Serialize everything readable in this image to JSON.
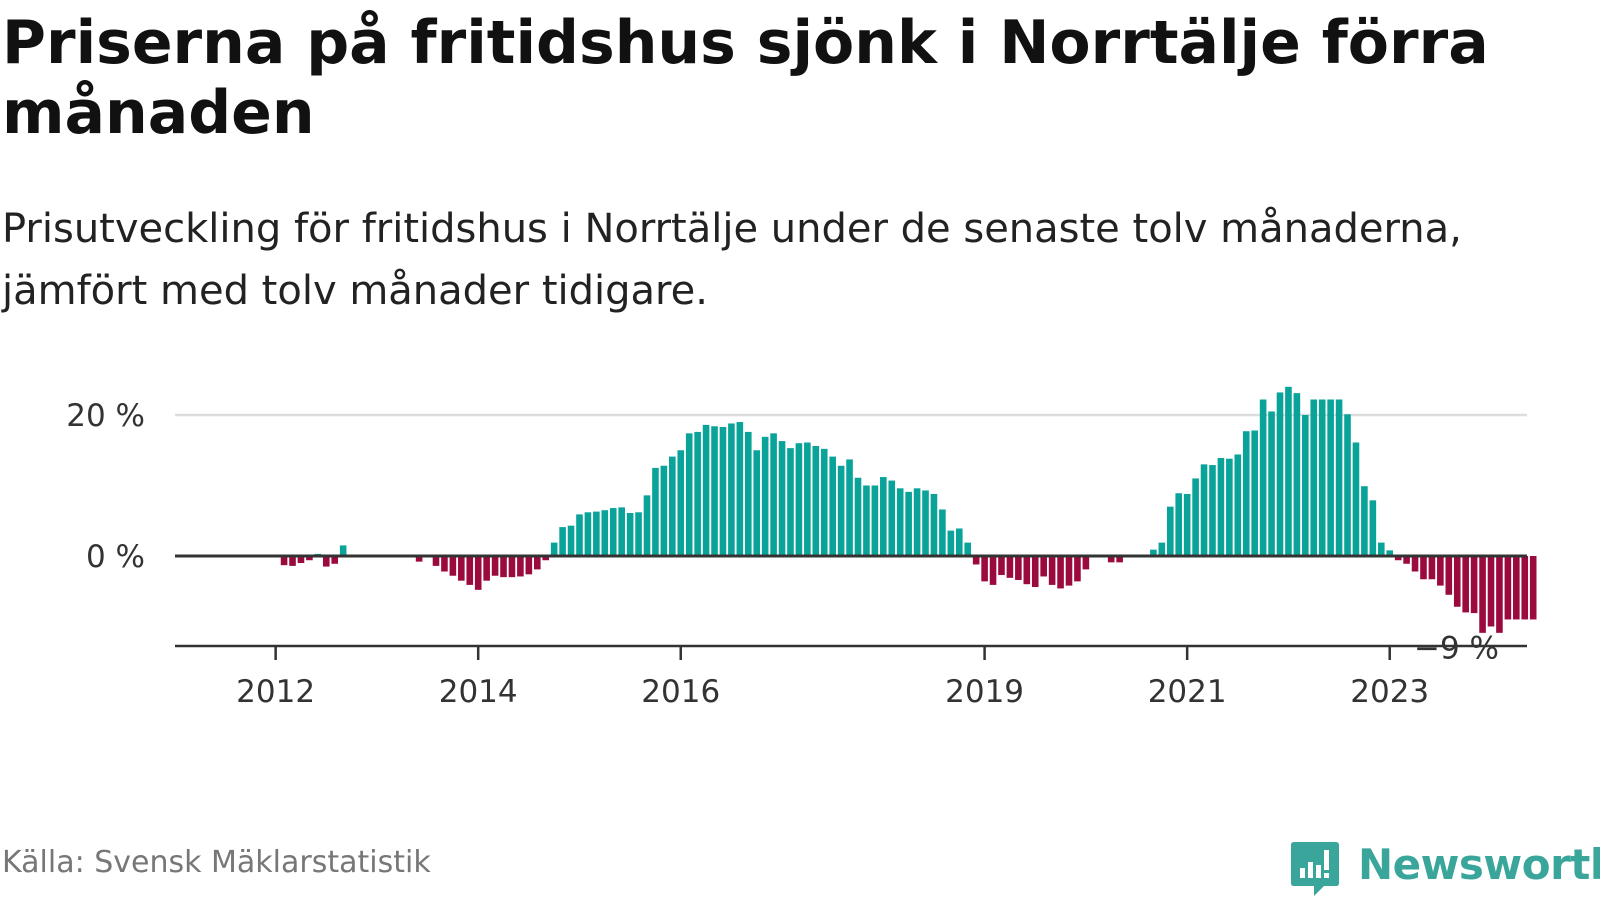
{
  "title": "Priserna på fritidshus sjönk i Norrtälje förra månaden",
  "subtitle": "Prisutveckling för fritidshus i Norrtälje under de senaste tolv månaderna, jämfört med tolv månader tidigare.",
  "source": "Källa: Svensk Mäklarstatistik",
  "logo_text": "Newsworthy",
  "colors": {
    "positive": "#0aa39a",
    "negative": "#9b0a3f",
    "axis": "#333333",
    "grid": "#dddddd",
    "logo": "#3aa59a"
  },
  "chart_data": {
    "type": "bar",
    "title": "Priserna på fritidshus sjönk i Norrtälje förra månaden",
    "xlabel": "",
    "ylabel": "",
    "ylim": [
      -12.5,
      24
    ],
    "y_ticks": [
      {
        "value": 0,
        "label": "0 %"
      },
      {
        "value": 20,
        "label": "20 %"
      }
    ],
    "x_ticks": [
      {
        "index": 11,
        "label": "2012"
      },
      {
        "index": 35,
        "label": "2014"
      },
      {
        "index": 59,
        "label": "2016"
      },
      {
        "index": 95,
        "label": "2019"
      },
      {
        "index": 119,
        "label": "2021"
      },
      {
        "index": 143,
        "label": "2023"
      }
    ],
    "last_value_label": "−9 %",
    "start": "2011-01",
    "values": [
      0,
      0,
      0,
      0,
      0,
      0,
      0,
      0,
      0,
      0,
      0,
      0,
      -1.3,
      -1.4,
      -1.0,
      -0.6,
      0.3,
      -1.5,
      -1.1,
      1.5,
      0,
      0,
      0,
      0,
      0,
      0,
      0,
      0,
      -0.8,
      0,
      -1.4,
      -2.2,
      -2.8,
      -3.5,
      -4.1,
      -4.8,
      -3.5,
      -2.8,
      -3.0,
      -3.0,
      -2.9,
      -2.6,
      -1.9,
      -0.6,
      1.9,
      4.1,
      4.3,
      5.9,
      6.2,
      6.3,
      6.5,
      6.8,
      6.9,
      6.1,
      6.2,
      8.6,
      12.5,
      12.8,
      14.1,
      15.0,
      17.4,
      17.6,
      18.6,
      18.4,
      18.3,
      18.8,
      19.0,
      17.6,
      15.0,
      16.9,
      17.4,
      16.3,
      15.3,
      16.0,
      16.1,
      15.6,
      15.2,
      14.1,
      12.8,
      13.7,
      11.1,
      10.0,
      10.0,
      11.2,
      10.7,
      9.6,
      9.1,
      9.6,
      9.3,
      8.8,
      6.6,
      3.6,
      3.9,
      1.9,
      -1.2,
      -3.6,
      -4.1,
      -2.7,
      -3.1,
      -3.4,
      -4.0,
      -4.4,
      -2.9,
      -4.1,
      -4.6,
      -4.2,
      -3.6,
      -1.9,
      0,
      0,
      -0.9,
      -0.9,
      0,
      0,
      0,
      0.9,
      1.9,
      7.0,
      8.9,
      8.8,
      11.0,
      13.0,
      12.9,
      13.9,
      13.8,
      14.4,
      17.7,
      17.8,
      22.2,
      20.5,
      23.2,
      24.0,
      23.1,
      20.0,
      22.2,
      22.2,
      22.2,
      22.2,
      20.1,
      16.1,
      9.9,
      7.9,
      1.9,
      0.8,
      -0.6,
      -1.1,
      -2.2,
      -3.3,
      -3.3,
      -4.2,
      -5.5,
      -7.2,
      -8.0,
      -8.1,
      -10.9,
      -10.0,
      -10.9,
      -9.0,
      -9.0,
      -9.0,
      -9.0
    ]
  }
}
